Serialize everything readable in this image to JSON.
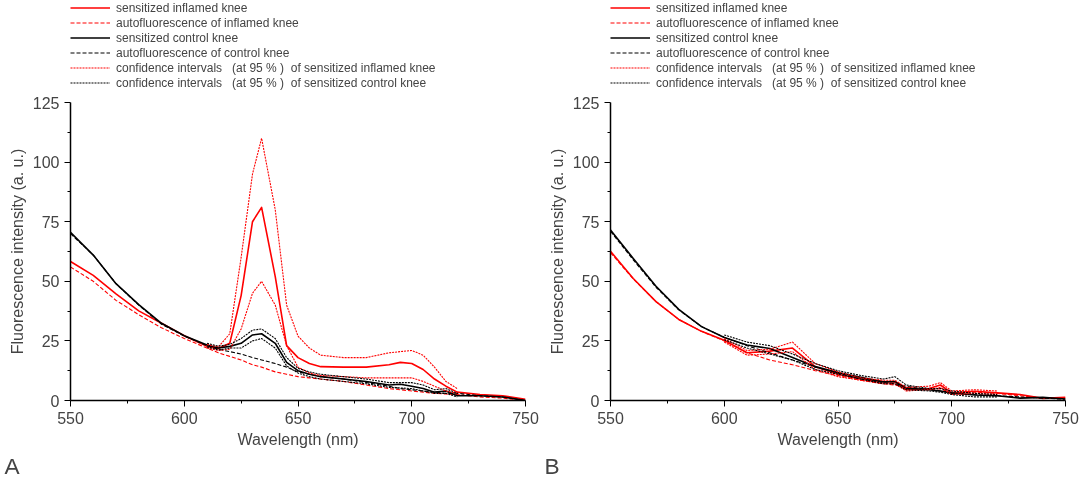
{
  "chart_data": [
    {
      "type": "line",
      "xlabel": "Wavelength (nm)",
      "ylabel": "Fluorescence intensity (a. u.)",
      "annotations": [
        "A"
      ],
      "legend": "top left",
      "grid": false,
      "xlim": [
        550,
        750
      ],
      "xticks": [
        550,
        600,
        650,
        700,
        750
      ],
      "ylim": [
        0,
        125
      ],
      "yticks": [
        0,
        25,
        50,
        75,
        100,
        125
      ],
      "x": [
        550,
        560,
        570,
        580,
        590,
        600,
        610,
        615,
        620,
        625,
        630,
        634,
        640,
        645,
        650,
        655,
        660,
        670,
        680,
        690,
        695,
        700,
        705,
        710,
        715,
        720,
        730,
        740,
        750
      ],
      "series": [
        {
          "name": "sensitized inflamed knee",
          "color": "#ff0000",
          "line_style": "solid",
          "values": [
            58.3,
            52.5,
            44.7,
            37.6,
            32.4,
            27.2,
            22.7,
            21.8,
            24,
            44,
            75,
            81,
            52,
            23,
            18,
            15.5,
            14.2,
            14,
            14,
            15,
            16,
            15.5,
            13,
            9,
            6,
            3.5,
            2.5,
            2,
            0.5
          ]
        },
        {
          "name": "autofluorescence of inflamed knee",
          "color": "#ff0000",
          "line_style": "dashed",
          "values": [
            56,
            50,
            42,
            36,
            30.5,
            26,
            22,
            20,
            18.5,
            17,
            15,
            14,
            12,
            11,
            10,
            9.5,
            9,
            8,
            6.5,
            5,
            4.5,
            4,
            3.5,
            3,
            2.7,
            2.5,
            1.5,
            1,
            0
          ]
        },
        {
          "name": "sensitized control knee",
          "color": "#000000",
          "line_style": "solid",
          "values": [
            70.5,
            61,
            49,
            40.2,
            32.4,
            27.2,
            23.3,
            22,
            22.7,
            24,
            27.5,
            28,
            24,
            16,
            12.5,
            11,
            10,
            9,
            8,
            6.5,
            6.8,
            6,
            5,
            3.5,
            4,
            2,
            2,
            1.5,
            0
          ]
        },
        {
          "name": "autofluorescence of control knee",
          "color": "#000000",
          "line_style": "dashed",
          "values": [
            70,
            61,
            49,
            40,
            32,
            27,
            23,
            21.5,
            20.5,
            19.5,
            18,
            17,
            15.5,
            14,
            12,
            11,
            10,
            9,
            7.5,
            6,
            5,
            4.5,
            4,
            3.5,
            3,
            3,
            2,
            1.5,
            0
          ]
        },
        {
          "name": "confidence intervals   (at 95 % )  of sensitized inflamed knee",
          "color": "#ff0000",
          "line_style": "dotted",
          "x": [
            610,
            615,
            620,
            625,
            630,
            634,
            640,
            645,
            650,
            655,
            660,
            670,
            680,
            690,
            700,
            705,
            710,
            715,
            720
          ],
          "values": [
            23.5,
            22.5,
            28,
            60,
            95,
            110,
            80,
            40,
            27,
            22,
            19,
            18,
            18,
            20,
            21,
            19,
            14,
            8,
            5
          ]
        },
        {
          "color": "#ff0000",
          "line_style": "dotted",
          "x": [
            610,
            615,
            620,
            625,
            630,
            634,
            640,
            645,
            650,
            655,
            660,
            670,
            680,
            690,
            700,
            705,
            710,
            715,
            720
          ],
          "values": [
            22,
            21,
            21.5,
            30,
            45,
            50,
            40,
            23,
            14,
            11.5,
            10.5,
            10,
            9.5,
            9.5,
            9.5,
            8,
            6,
            4,
            3
          ]
        },
        {
          "name": "confidence intervals   (at 95 % )  of sensitized control knee",
          "color": "#000000",
          "line_style": "dotted",
          "x": [
            610,
            615,
            620,
            625,
            630,
            634,
            640,
            645,
            650,
            655,
            660,
            670,
            680,
            690,
            700,
            705,
            710,
            715,
            720
          ],
          "values": [
            24,
            22.8,
            23.5,
            26,
            29.5,
            30,
            26,
            18,
            13.5,
            12,
            11,
            10,
            9,
            7.5,
            7.5,
            6.5,
            4.5,
            5,
            3
          ]
        },
        {
          "color": "#000000",
          "line_style": "dotted",
          "x": [
            610,
            615,
            620,
            625,
            630,
            634,
            640,
            645,
            650,
            655,
            660,
            670,
            680,
            690,
            700,
            705,
            710,
            715,
            720
          ],
          "values": [
            22.5,
            21.2,
            22,
            22,
            25,
            26,
            22,
            14.5,
            11.5,
            10,
            9,
            8,
            7,
            5.5,
            5,
            4,
            3,
            3,
            1.5
          ]
        }
      ]
    },
    {
      "type": "line",
      "xlabel": "Wavelength (nm)",
      "ylabel": "Fluorescence intensity (a. u.)",
      "annotations": [
        "B"
      ],
      "legend": "top left",
      "grid": false,
      "xlim": [
        550,
        750
      ],
      "xticks": [
        550,
        600,
        650,
        700,
        750
      ],
      "ylim": [
        0,
        125
      ],
      "yticks": [
        0,
        25,
        50,
        75,
        100,
        125
      ],
      "x": [
        550,
        560,
        570,
        580,
        590,
        600,
        610,
        620,
        630,
        640,
        650,
        660,
        670,
        675,
        680,
        690,
        695,
        700,
        710,
        720,
        730,
        740,
        750
      ],
      "series": [
        {
          "name": "sensitized inflamed knee",
          "color": "#ff0000",
          "line_style": "solid",
          "values": [
            62.6,
            51.2,
            41.5,
            34,
            29,
            25.3,
            20,
            20.7,
            22,
            14.2,
            11,
            9,
            7.8,
            7.8,
            4.5,
            5,
            6.5,
            3.2,
            3.9,
            3.2,
            2.5,
            0.9,
            1.3
          ]
        },
        {
          "name": "autofluorescence of inflamed knee",
          "color": "#ff0000",
          "line_style": "dashed",
          "values": [
            62,
            51,
            41.5,
            34,
            29,
            25,
            20,
            17,
            15,
            12.5,
            10.5,
            8.5,
            7,
            6.5,
            5.5,
            4.5,
            5,
            3,
            3.5,
            3,
            2,
            1,
            1
          ]
        },
        {
          "name": "sensitized control knee",
          "color": "#000000",
          "line_style": "solid",
          "values": [
            71.5,
            59.6,
            47.9,
            38.2,
            31,
            26.4,
            23.3,
            21.8,
            18,
            14.2,
            11.7,
            9.7,
            7.8,
            8,
            5.2,
            4.5,
            4,
            3.2,
            2.3,
            2,
            1,
            1.3,
            0.6
          ]
        },
        {
          "name": "autofluorescence of control knee",
          "color": "#000000",
          "line_style": "dashed",
          "values": [
            71,
            59,
            47.5,
            38,
            31,
            26.5,
            23,
            20,
            17,
            14,
            11.5,
            9,
            7.5,
            7,
            6,
            4.5,
            4,
            3,
            2.5,
            2,
            1.5,
            1,
            0.5
          ]
        },
        {
          "name": "confidence intervals   (at 95 % )  of sensitized inflamed knee",
          "color": "#ff0000",
          "line_style": "dotted",
          "x": [
            600,
            610,
            620,
            630,
            640,
            650,
            660,
            670,
            675,
            680,
            690,
            695,
            700,
            710,
            720
          ],
          "values": [
            26,
            21,
            21.5,
            24.5,
            15.5,
            12,
            9.5,
            8.5,
            8.5,
            5.5,
            6,
            7.5,
            4,
            4.5,
            4
          ]
        },
        {
          "color": "#ff0000",
          "line_style": "dotted",
          "x": [
            600,
            610,
            620,
            630,
            640,
            650,
            660,
            670,
            675,
            680,
            690,
            695,
            700,
            710,
            720
          ],
          "values": [
            24.5,
            19,
            19.5,
            20.5,
            13,
            10,
            8.5,
            7,
            7,
            4,
            4.5,
            5.5,
            2.5,
            3,
            2.5
          ]
        },
        {
          "name": "confidence intervals   (at 95 % )  of sensitized control knee",
          "color": "#000000",
          "line_style": "dotted",
          "x": [
            600,
            610,
            620,
            630,
            640,
            650,
            660,
            670,
            675,
            680,
            690,
            695,
            700,
            710,
            720
          ],
          "values": [
            27.5,
            24.5,
            23,
            19.5,
            15.5,
            12.5,
            10.5,
            9,
            10,
            6.5,
            5,
            5,
            4,
            3,
            2.5
          ]
        },
        {
          "color": "#000000",
          "line_style": "dotted",
          "x": [
            600,
            610,
            620,
            630,
            640,
            650,
            660,
            670,
            675,
            680,
            690,
            695,
            700,
            710,
            720
          ],
          "values": [
            25.5,
            22,
            19.5,
            17,
            13,
            11,
            9,
            7,
            7,
            4.5,
            4,
            3.5,
            2.5,
            1.5,
            1.5
          ]
        }
      ]
    }
  ]
}
